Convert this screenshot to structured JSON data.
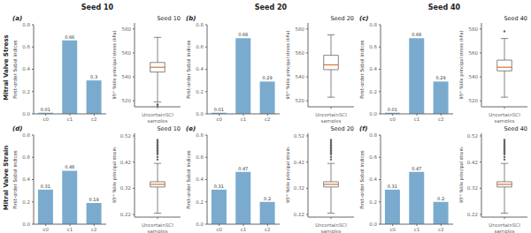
{
  "chart_data": [
    {
      "type": "bar",
      "title": "Seed 10",
      "subtitle": "Mitral Valve Stress",
      "annotations": [
        "(a)"
      ],
      "categories": [
        "c0",
        "c1",
        "c2"
      ],
      "values": [
        0.01,
        0.66,
        0.3
      ],
      "color": "#7aabcf",
      "ylabel": "First-order Sobol indices",
      "ylim": [
        0.0,
        0.8
      ],
      "yticks": [
        {
          "value": 0.0,
          "label": "0.0"
        },
        0.2,
        0.4,
        0.6,
        0.8
      ],
      "data_labels": true
    },
    {
      "type": "box",
      "title": "Seed 10",
      "categories": [
        "UncertainSCI\nsamples"
      ],
      "median": 548,
      "q1": 544,
      "q3": 552,
      "whislo": 519,
      "whishi": 573,
      "fliers": [
        516,
        517
      ],
      "color": "#e07030",
      "ylabel": "95ᵗʰ %tile principal stress (kPa)",
      "ylim": [
        515,
        585
      ],
      "yticks": [
        520,
        540,
        560,
        580
      ]
    },
    {
      "type": "bar",
      "title": "Seed 20",
      "annotations": [
        "(b)"
      ],
      "categories": [
        "c0",
        "c1",
        "c2"
      ],
      "values": [
        0.01,
        0.68,
        0.29
      ],
      "color": "#7aabcf",
      "ylabel": "First-order Sobol indices",
      "ylim": [
        0.0,
        0.8
      ],
      "yticks": [
        {
          "value": 0.0,
          "label": "0.0"
        },
        0.2,
        0.4,
        0.6,
        0.8
      ],
      "data_labels": true
    },
    {
      "type": "box",
      "title": "Seed 20",
      "categories": [
        "UncertainSCI\nsamples"
      ],
      "median": 550,
      "q1": 546,
      "q3": 558,
      "whislo": 523,
      "whishi": 575,
      "fliers": [],
      "color": "#e07030",
      "ylabel": "95ᵗʰ %tile principal stress (kPa)",
      "ylim": [
        515,
        585
      ],
      "yticks": [
        520,
        540,
        560,
        580
      ]
    },
    {
      "type": "bar",
      "title": "Seed 40",
      "annotations": [
        "(c)"
      ],
      "categories": [
        "c0",
        "c1",
        "c2"
      ],
      "values": [
        0.01,
        0.68,
        0.29
      ],
      "color": "#7aabcf",
      "ylabel": "First-order Sobol indices",
      "ylim": [
        0.0,
        0.8
      ],
      "yticks": [
        {
          "value": 0.0,
          "label": "0.0"
        },
        0.2,
        0.4,
        0.6,
        0.8
      ],
      "data_labels": true
    },
    {
      "type": "box",
      "title": "Seed 40",
      "categories": [
        "UncertainSCI\nsamples"
      ],
      "median": 548,
      "q1": 545,
      "q3": 554,
      "whislo": 523,
      "whishi": 572,
      "fliers": [
        578
      ],
      "color": "#e07030",
      "ylabel": "95ᵗʰ %tile principal stress (kPa)",
      "ylim": [
        515,
        585
      ],
      "yticks": [
        520,
        540,
        560,
        580
      ]
    },
    {
      "type": "bar",
      "subtitle": "Mitral Valve Strain",
      "annotations": [
        "(d)"
      ],
      "categories": [
        "c0",
        "c1",
        "c2"
      ],
      "values": [
        0.31,
        0.48,
        0.19
      ],
      "color": "#7aabcf",
      "ylabel": "First-order Sobol indices",
      "ylim": [
        0.0,
        0.8
      ],
      "yticks": [
        {
          "value": 0.0,
          "label": "0.0"
        },
        0.2,
        0.4,
        0.6,
        0.8
      ],
      "data_labels": true
    },
    {
      "type": "box",
      "title": "Seed 10",
      "categories": [
        "UncertainSCI\nsamples"
      ],
      "median": 0.335,
      "q1": 0.325,
      "q3": 0.345,
      "whislo": 0.225,
      "whishi": 0.415,
      "fliers": [
        0.43,
        0.44,
        0.45,
        0.455,
        0.46,
        0.465,
        0.47,
        0.475,
        0.48,
        0.485,
        0.49,
        0.495,
        0.5,
        0.505
      ],
      "color": "#e07030",
      "ylabel": "95ᵗʰ %tile principal strain",
      "ylim": [
        0.21,
        0.53
      ],
      "yticks": [
        0.22,
        0.32,
        0.42,
        0.52
      ]
    },
    {
      "type": "bar",
      "annotations": [
        "(e)"
      ],
      "categories": [
        "c0",
        "c1",
        "c2"
      ],
      "values": [
        0.31,
        0.47,
        0.2
      ],
      "color": "#7aabcf",
      "ylabel": "First-order Sobol indices",
      "ylim": [
        0.0,
        0.8
      ],
      "yticks": [
        {
          "value": 0.0,
          "label": "0.0"
        },
        0.2,
        0.4,
        0.6,
        0.8
      ],
      "data_labels": true
    },
    {
      "type": "box",
      "title": "Seed 20",
      "categories": [
        "UncertainSCI\nsamples"
      ],
      "median": 0.335,
      "q1": 0.325,
      "q3": 0.345,
      "whislo": 0.225,
      "whishi": 0.415,
      "fliers": [
        0.43,
        0.44,
        0.45,
        0.455,
        0.46,
        0.465,
        0.47,
        0.475,
        0.48,
        0.485,
        0.49,
        0.495,
        0.5,
        0.505
      ],
      "color": "#e07030",
      "ylabel": "95ᵗʰ %tile principal strain",
      "ylim": [
        0.21,
        0.53
      ],
      "yticks": [
        0.22,
        0.32,
        0.42,
        0.52
      ]
    },
    {
      "type": "bar",
      "annotations": [
        "(f)"
      ],
      "categories": [
        "c0",
        "c1",
        "c2"
      ],
      "values": [
        0.31,
        0.47,
        0.2
      ],
      "color": "#7aabcf",
      "ylabel": "First-order Sobol indices",
      "ylim": [
        0.0,
        0.8
      ],
      "yticks": [
        {
          "value": 0.0,
          "label": "0.0"
        },
        0.2,
        0.4,
        0.6,
        0.8
      ],
      "data_labels": true
    },
    {
      "type": "box",
      "title": "Seed 40",
      "categories": [
        "UncertainSCI\nsamples"
      ],
      "median": 0.335,
      "q1": 0.325,
      "q3": 0.345,
      "whislo": 0.225,
      "whishi": 0.415,
      "fliers": [
        0.43,
        0.44,
        0.45,
        0.455,
        0.46,
        0.465,
        0.47,
        0.475,
        0.48,
        0.485,
        0.49,
        0.495,
        0.5,
        0.505
      ],
      "color": "#e07030",
      "ylabel": "95ᵗʰ %tile principal strain",
      "ylim": [
        0.21,
        0.53
      ],
      "yticks": [
        0.22,
        0.32,
        0.42,
        0.52
      ]
    }
  ]
}
